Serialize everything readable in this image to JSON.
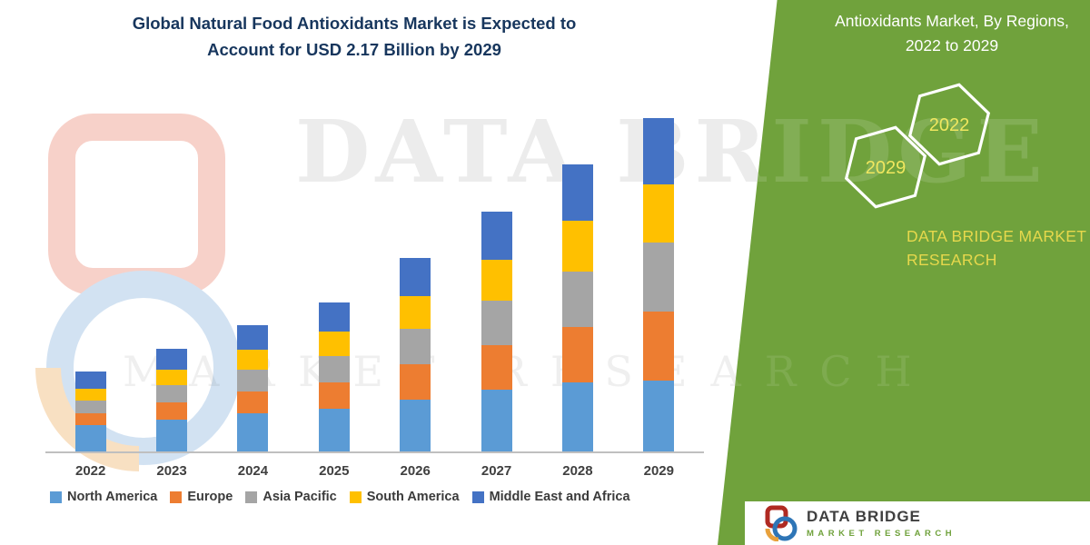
{
  "title": {
    "line1": "Global Natural Food Antioxidants Market is Expected to",
    "line2": "Account for USD 2.17 Billion by 2029"
  },
  "panel": {
    "heading": "Antioxidants Market, By Regions, 2022 to 2029",
    "years": [
      "2029",
      "2022"
    ],
    "brand": "DATA BRIDGE MARKET RESEARCH",
    "colors": {
      "background": "#70A23C",
      "year_text": "#F0E75F",
      "brand_text": "#E6D84C"
    }
  },
  "watermark": {
    "line1": "DATA BRIDGE",
    "line2": "MARKET RESEARCH"
  },
  "footer": {
    "brand": "DATA BRIDGE",
    "sub": "MARKET RESEARCH"
  },
  "chart_data": {
    "type": "stacked-bar",
    "title": "Global Natural Food Antioxidants Market is Expected to Account for USD 2.17 Billion by 2029",
    "unit": "USD Billion",
    "categories": [
      "2022",
      "2023",
      "2024",
      "2025",
      "2026",
      "2027",
      "2028",
      "2029"
    ],
    "series": [
      {
        "name": "North America",
        "color": "#5B9BD5",
        "values": [
          0.17,
          0.21,
          0.25,
          0.28,
          0.34,
          0.4,
          0.45,
          0.46
        ]
      },
      {
        "name": "Europe",
        "color": "#ED7D31",
        "values": [
          0.08,
          0.11,
          0.14,
          0.17,
          0.23,
          0.29,
          0.36,
          0.45
        ]
      },
      {
        "name": "Asia Pacific",
        "color": "#A5A5A5",
        "values": [
          0.08,
          0.11,
          0.14,
          0.17,
          0.23,
          0.29,
          0.36,
          0.45
        ]
      },
      {
        "name": "South America",
        "color": "#FFC000",
        "values": [
          0.08,
          0.1,
          0.13,
          0.16,
          0.21,
          0.27,
          0.33,
          0.38
        ]
      },
      {
        "name": "Middle East and Africa",
        "color": "#4472C4",
        "values": [
          0.11,
          0.14,
          0.16,
          0.19,
          0.25,
          0.31,
          0.37,
          0.43
        ]
      }
    ],
    "totals": [
      0.52,
      0.67,
      0.82,
      0.97,
      1.26,
      1.56,
      1.87,
      2.17
    ],
    "ylim": [
      0,
      2.2
    ],
    "y_axis_visible": false,
    "gridlines": false,
    "legend_position": "bottom",
    "values_estimated": true
  }
}
